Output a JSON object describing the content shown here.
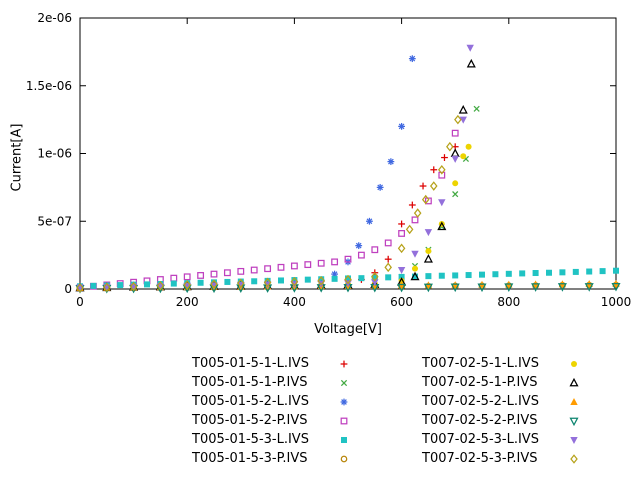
{
  "chart_data": {
    "type": "scatter",
    "title": "",
    "xlabel": "Voltage[V]",
    "ylabel": "Current[A]",
    "xlim": [
      0,
      1000
    ],
    "ylim": [
      0,
      2e-06
    ],
    "xticks": [
      0,
      200,
      400,
      600,
      800,
      1000
    ],
    "xtick_labels": [
      "0",
      "200",
      "400",
      "600",
      "800",
      "1000"
    ],
    "yticks": [
      0,
      5e-07,
      1e-06,
      1.5e-06,
      2e-06
    ],
    "ytick_labels": [
      "0",
      "5e-07",
      "1e-06",
      "1.5e-06",
      "2e-06"
    ],
    "grid": false,
    "legend_position": "below-two-columns",
    "series": [
      {
        "name": "T005-01-5-1-L.IVS",
        "color": "#dd0000",
        "marker": "plus",
        "points": [
          [
            0,
            2e-08
          ],
          [
            50,
            2.4e-08
          ],
          [
            100,
            2.8e-08
          ],
          [
            150,
            3.2e-08
          ],
          [
            200,
            3.6e-08
          ],
          [
            250,
            4e-08
          ],
          [
            300,
            4.4e-08
          ],
          [
            350,
            4.8e-08
          ],
          [
            400,
            5.2e-08
          ],
          [
            450,
            5.6e-08
          ],
          [
            500,
            6.2e-08
          ],
          [
            525,
            7e-08
          ],
          [
            550,
            1.2e-07
          ],
          [
            575,
            2.2e-07
          ],
          [
            600,
            4.8e-07
          ],
          [
            620,
            6.2e-07
          ],
          [
            640,
            7.6e-07
          ],
          [
            660,
            8.8e-07
          ],
          [
            680,
            9.7e-07
          ],
          [
            700,
            1.05e-06
          ]
        ]
      },
      {
        "name": "T005-01-5-1-P.IVS",
        "color": "#44aa44",
        "marker": "times",
        "points": [
          [
            0,
            1.5e-08
          ],
          [
            50,
            1.8e-08
          ],
          [
            100,
            2.2e-08
          ],
          [
            150,
            2.5e-08
          ],
          [
            200,
            2.9e-08
          ],
          [
            250,
            3.2e-08
          ],
          [
            300,
            3.6e-08
          ],
          [
            350,
            3.9e-08
          ],
          [
            400,
            4.3e-08
          ],
          [
            450,
            4.6e-08
          ],
          [
            500,
            5e-08
          ],
          [
            550,
            6e-08
          ],
          [
            600,
            9e-08
          ],
          [
            625,
            1.7e-07
          ],
          [
            650,
            2.9e-07
          ],
          [
            675,
            4.6e-07
          ],
          [
            700,
            7e-07
          ],
          [
            720,
            9.6e-07
          ],
          [
            740,
            1.33e-06
          ]
        ]
      },
      {
        "name": "T005-01-5-2-L.IVS",
        "color": "#4169e1",
        "marker": "asterisk",
        "points": [
          [
            0,
            2e-08
          ],
          [
            50,
            2.5e-08
          ],
          [
            100,
            2.9e-08
          ],
          [
            150,
            3.4e-08
          ],
          [
            200,
            3.8e-08
          ],
          [
            250,
            4.3e-08
          ],
          [
            300,
            4.7e-08
          ],
          [
            350,
            5.2e-08
          ],
          [
            400,
            5.6e-08
          ],
          [
            450,
            6.5e-08
          ],
          [
            475,
            1.1e-07
          ],
          [
            500,
            2e-07
          ],
          [
            520,
            3.2e-07
          ],
          [
            540,
            5e-07
          ],
          [
            560,
            7.5e-07
          ],
          [
            580,
            9.4e-07
          ],
          [
            600,
            1.2e-06
          ],
          [
            620,
            1.7e-06
          ]
        ]
      },
      {
        "name": "T005-01-5-2-P.IVS",
        "color": "#bf40bf",
        "marker": "square-open",
        "points": [
          [
            0,
            1e-08
          ],
          [
            25,
            2e-08
          ],
          [
            50,
            3e-08
          ],
          [
            75,
            4e-08
          ],
          [
            100,
            5e-08
          ],
          [
            125,
            6e-08
          ],
          [
            150,
            7e-08
          ],
          [
            175,
            8e-08
          ],
          [
            200,
            9e-08
          ],
          [
            225,
            1e-07
          ],
          [
            250,
            1.1e-07
          ],
          [
            275,
            1.2e-07
          ],
          [
            300,
            1.3e-07
          ],
          [
            325,
            1.4e-07
          ],
          [
            350,
            1.5e-07
          ],
          [
            375,
            1.6e-07
          ],
          [
            400,
            1.7e-07
          ],
          [
            425,
            1.8e-07
          ],
          [
            450,
            1.9e-07
          ],
          [
            475,
            2e-07
          ],
          [
            500,
            2.2e-07
          ],
          [
            525,
            2.5e-07
          ],
          [
            550,
            2.9e-07
          ],
          [
            575,
            3.4e-07
          ],
          [
            600,
            4.1e-07
          ],
          [
            625,
            5.1e-07
          ],
          [
            650,
            6.5e-07
          ],
          [
            675,
            8.4e-07
          ],
          [
            700,
            1.15e-06
          ]
        ]
      },
      {
        "name": "T005-01-5-3-L.IVS",
        "color": "#20c3c3",
        "marker": "square-filled",
        "points": [
          [
            0,
            2e-08
          ],
          [
            25,
            2.3e-08
          ],
          [
            50,
            2.6e-08
          ],
          [
            75,
            2.9e-08
          ],
          [
            100,
            3.2e-08
          ],
          [
            125,
            3.4e-08
          ],
          [
            150,
            3.7e-08
          ],
          [
            175,
            4e-08
          ],
          [
            200,
            4.3e-08
          ],
          [
            225,
            4.6e-08
          ],
          [
            250,
            4.9e-08
          ],
          [
            275,
            5.2e-08
          ],
          [
            300,
            5.5e-08
          ],
          [
            325,
            5.7e-08
          ],
          [
            350,
            6e-08
          ],
          [
            375,
            6.3e-08
          ],
          [
            400,
            6.6e-08
          ],
          [
            425,
            6.9e-08
          ],
          [
            450,
            7.2e-08
          ],
          [
            475,
            7.5e-08
          ],
          [
            500,
            7.8e-08
          ],
          [
            525,
            8e-08
          ],
          [
            550,
            8.3e-08
          ],
          [
            575,
            8.6e-08
          ],
          [
            600,
            8.9e-08
          ],
          [
            625,
            9.2e-08
          ],
          [
            650,
            9.5e-08
          ],
          [
            675,
            9.8e-08
          ],
          [
            700,
            1e-07
          ],
          [
            725,
            1.03e-07
          ],
          [
            750,
            1.06e-07
          ],
          [
            775,
            1.09e-07
          ],
          [
            800,
            1.12e-07
          ],
          [
            825,
            1.15e-07
          ],
          [
            850,
            1.18e-07
          ],
          [
            875,
            1.2e-07
          ],
          [
            900,
            1.23e-07
          ],
          [
            925,
            1.26e-07
          ],
          [
            950,
            1.29e-07
          ],
          [
            975,
            1.32e-07
          ],
          [
            1000,
            1.35e-07
          ]
        ]
      },
      {
        "name": "T005-01-5-3-P.IVS",
        "color": "#b8860b",
        "marker": "circle-open",
        "points": [
          [
            0,
            5e-09
          ],
          [
            50,
            6e-09
          ],
          [
            100,
            8e-09
          ],
          [
            150,
            9e-09
          ],
          [
            200,
            1e-08
          ],
          [
            250,
            1.1e-08
          ],
          [
            300,
            1.3e-08
          ],
          [
            350,
            1.4e-08
          ],
          [
            400,
            1.5e-08
          ],
          [
            450,
            1.6e-08
          ],
          [
            500,
            1.8e-08
          ],
          [
            550,
            1.9e-08
          ],
          [
            600,
            2e-08
          ],
          [
            650,
            2.1e-08
          ],
          [
            700,
            2.3e-08
          ],
          [
            750,
            2.4e-08
          ],
          [
            800,
            2.5e-08
          ],
          [
            850,
            2.6e-08
          ],
          [
            900,
            2.8e-08
          ],
          [
            950,
            2.9e-08
          ],
          [
            1000,
            3e-08
          ]
        ]
      },
      {
        "name": "T007-02-5-1-L.IVS",
        "color": "#edd400",
        "marker": "circle-filled",
        "points": [
          [
            0,
            1e-08
          ],
          [
            50,
            1.3e-08
          ],
          [
            100,
            1.5e-08
          ],
          [
            150,
            1.8e-08
          ],
          [
            200,
            2e-08
          ],
          [
            250,
            2.3e-08
          ],
          [
            300,
            2.5e-08
          ],
          [
            350,
            2.8e-08
          ],
          [
            400,
            3e-08
          ],
          [
            450,
            3.3e-08
          ],
          [
            500,
            3.6e-08
          ],
          [
            550,
            4e-08
          ],
          [
            600,
            6e-08
          ],
          [
            625,
            1.5e-07
          ],
          [
            650,
            2.8e-07
          ],
          [
            675,
            4.8e-07
          ],
          [
            700,
            7.8e-07
          ],
          [
            715,
            9.8e-07
          ],
          [
            725,
            1.05e-06
          ]
        ]
      },
      {
        "name": "T007-02-5-1-P.IVS",
        "color": "#000000",
        "marker": "triangle-up-open",
        "points": [
          [
            0,
            8e-09
          ],
          [
            50,
            1e-08
          ],
          [
            100,
            1.2e-08
          ],
          [
            150,
            1.4e-08
          ],
          [
            200,
            1.6e-08
          ],
          [
            250,
            1.8e-08
          ],
          [
            300,
            2e-08
          ],
          [
            350,
            2.2e-08
          ],
          [
            400,
            2.4e-08
          ],
          [
            450,
            2.6e-08
          ],
          [
            500,
            2.9e-08
          ],
          [
            550,
            3.3e-08
          ],
          [
            600,
            5e-08
          ],
          [
            625,
            9e-08
          ],
          [
            650,
            2.2e-07
          ],
          [
            675,
            4.6e-07
          ],
          [
            700,
            1e-06
          ],
          [
            715,
            1.32e-06
          ],
          [
            730,
            1.66e-06
          ]
        ]
      },
      {
        "name": "T007-02-5-2-L.IVS",
        "color": "#ff9c00",
        "marker": "triangle-up-filled",
        "points": [
          [
            0,
            8e-09
          ],
          [
            50,
            9.5e-09
          ],
          [
            100,
            1.1e-08
          ],
          [
            150,
            1.3e-08
          ],
          [
            200,
            1.4e-08
          ],
          [
            250,
            1.6e-08
          ],
          [
            300,
            1.7e-08
          ],
          [
            350,
            1.9e-08
          ],
          [
            400,
            2e-08
          ],
          [
            450,
            2.2e-08
          ],
          [
            500,
            2.3e-08
          ],
          [
            550,
            2.5e-08
          ],
          [
            600,
            2.6e-08
          ],
          [
            650,
            2.8e-08
          ],
          [
            700,
            2.9e-08
          ],
          [
            750,
            3.1e-08
          ],
          [
            800,
            3.2e-08
          ],
          [
            850,
            3.4e-08
          ],
          [
            900,
            3.5e-08
          ],
          [
            950,
            3.7e-08
          ],
          [
            1000,
            3.8e-08
          ]
        ]
      },
      {
        "name": "T007-02-5-2-P.IVS",
        "color": "#0e8570",
        "marker": "triangle-down-open",
        "points": [
          [
            0,
            4e-09
          ],
          [
            50,
            4.8e-09
          ],
          [
            100,
            5.5e-09
          ],
          [
            150,
            6.3e-09
          ],
          [
            200,
            7e-09
          ],
          [
            250,
            7.8e-09
          ],
          [
            300,
            8.5e-09
          ],
          [
            350,
            9.3e-09
          ],
          [
            400,
            1e-08
          ],
          [
            450,
            1.1e-08
          ],
          [
            500,
            1.2e-08
          ],
          [
            550,
            1.2e-08
          ],
          [
            600,
            1.3e-08
          ],
          [
            650,
            1.4e-08
          ],
          [
            700,
            1.5e-08
          ],
          [
            750,
            1.5e-08
          ],
          [
            800,
            1.6e-08
          ],
          [
            850,
            1.7e-08
          ],
          [
            900,
            1.8e-08
          ],
          [
            950,
            1.8e-08
          ],
          [
            1000,
            1.9e-08
          ]
        ]
      },
      {
        "name": "T007-02-5-3-L.IVS",
        "color": "#9370db",
        "marker": "triangle-down-filled",
        "points": [
          [
            0,
            1.2e-08
          ],
          [
            50,
            1.5e-08
          ],
          [
            100,
            1.8e-08
          ],
          [
            150,
            2.1e-08
          ],
          [
            200,
            2.4e-08
          ],
          [
            250,
            2.7e-08
          ],
          [
            300,
            3e-08
          ],
          [
            350,
            3.3e-08
          ],
          [
            400,
            3.6e-08
          ],
          [
            450,
            3.9e-08
          ],
          [
            500,
            4.2e-08
          ],
          [
            550,
            5e-08
          ],
          [
            600,
            1.4e-07
          ],
          [
            625,
            2.6e-07
          ],
          [
            650,
            4.2e-07
          ],
          [
            675,
            6.4e-07
          ],
          [
            700,
            9.6e-07
          ],
          [
            715,
            1.25e-06
          ],
          [
            728,
            1.78e-06
          ]
        ]
      },
      {
        "name": "T007-02-5-3-P.IVS",
        "color": "#b6a21b",
        "marker": "diamond-open",
        "points": [
          [
            0,
            8e-09
          ],
          [
            50,
            1.2e-08
          ],
          [
            100,
            1.8e-08
          ],
          [
            150,
            2.4e-08
          ],
          [
            200,
            3e-08
          ],
          [
            250,
            3.6e-08
          ],
          [
            300,
            4.2e-08
          ],
          [
            350,
            4.8e-08
          ],
          [
            400,
            5.4e-08
          ],
          [
            450,
            6e-08
          ],
          [
            500,
            7e-08
          ],
          [
            550,
            9e-08
          ],
          [
            575,
            1.6e-07
          ],
          [
            600,
            3e-07
          ],
          [
            615,
            4.4e-07
          ],
          [
            630,
            5.6e-07
          ],
          [
            645,
            6.6e-07
          ],
          [
            660,
            7.6e-07
          ],
          [
            675,
            8.8e-07
          ],
          [
            690,
            1.05e-06
          ],
          [
            705,
            1.25e-06
          ]
        ]
      }
    ]
  }
}
